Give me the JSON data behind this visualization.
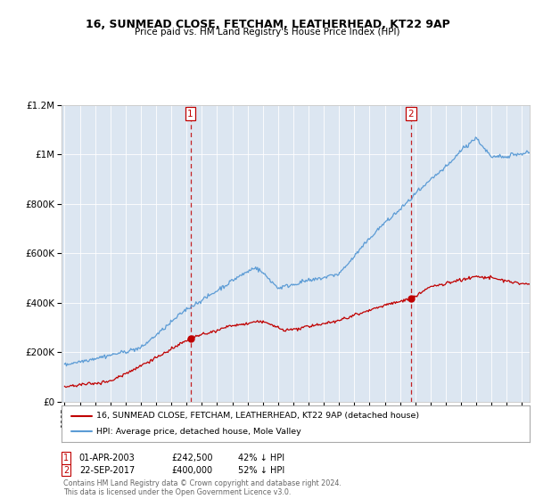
{
  "title": "16, SUNMEAD CLOSE, FETCHAM, LEATHERHEAD, KT22 9AP",
  "subtitle": "Price paid vs. HM Land Registry's House Price Index (HPI)",
  "sale1_date": "01-APR-2003",
  "sale1_price": 242500,
  "sale1_year": 2003.25,
  "sale2_date": "22-SEP-2017",
  "sale2_price": 400000,
  "sale2_year": 2017.72,
  "hpi_label": "HPI: Average price, detached house, Mole Valley",
  "property_label": "16, SUNMEAD CLOSE, FETCHAM, LEATHERHEAD, KT22 9AP (detached house)",
  "sale1_info_date": "01-APR-2003",
  "sale1_info_price": "£242,500",
  "sale1_info_hpi": "42% ↓ HPI",
  "sale2_info_date": "22-SEP-2017",
  "sale2_info_price": "£400,000",
  "sale2_info_hpi": "52% ↓ HPI",
  "footer": "Contains HM Land Registry data © Crown copyright and database right 2024.\nThis data is licensed under the Open Government Licence v3.0.",
  "hpi_color": "#5b9bd5",
  "property_color": "#c00000",
  "vline_color": "#c00000",
  "ylim_max": 1200000,
  "xlim_start": 1994.8,
  "xlim_end": 2025.5,
  "background_color": "#ffffff",
  "plot_bg_color": "#dce6f1"
}
